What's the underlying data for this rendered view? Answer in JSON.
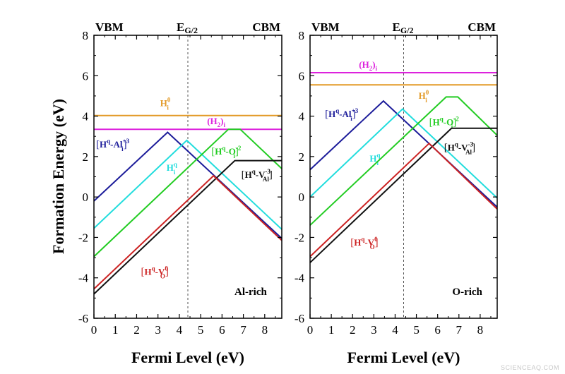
{
  "chart_data": {
    "type": "line",
    "y_axis_title": "Formation Energy (eV)",
    "x_axis_title": "Fermi Level (eV)",
    "xlim": [
      0,
      8.8
    ],
    "ylim": [
      -6,
      8
    ],
    "x_ticks": [
      "0",
      "1",
      "2",
      "3",
      "4",
      "5",
      "6",
      "7",
      "8"
    ],
    "y_ticks": [
      "-6",
      "-4",
      "-2",
      "0",
      "2",
      "4",
      "6",
      "8"
    ],
    "corner_labels": {
      "left": "VBM",
      "right": "CBM"
    },
    "midgap": {
      "label_main": "E",
      "label_sub": "G/2",
      "x": 4.4
    },
    "watermark": "SCIENCEAQ.COM",
    "panels": [
      {
        "name": "Al-rich",
        "series": [
          {
            "id": "Hi0",
            "label_main": "H",
            "label_sup": "0",
            "label_sub": "i",
            "color": "#e39a27",
            "points": [
              [
                0,
                4.03
              ],
              [
                8.8,
                4.03
              ]
            ],
            "label_pos": [
              3.1,
              4.5
            ]
          },
          {
            "id": "H2i",
            "label_main": "(H",
            "label_sub": "2",
            "label_tail": ")",
            "label_sub2": "i",
            "color": "#dd22dd",
            "points": [
              [
                0,
                3.35
              ],
              [
                8.8,
                3.35
              ]
            ],
            "label_pos": [
              5.3,
              3.6
            ]
          },
          {
            "id": "HqAl",
            "bracket": true,
            "label_main": "H",
            "label_sup": "q",
            "label_dash": "-Al",
            "label_sup2": "+3",
            "label_sub2": "i",
            "color": "#1c1c9a",
            "points": [
              [
                0,
                -0.2
              ],
              [
                3.45,
                3.2
              ],
              [
                8.8,
                -2.05
              ]
            ],
            "label_pos": [
              0.1,
              2.45
            ]
          },
          {
            "id": "Hiq",
            "label_main": "H",
            "label_sup": "q",
            "label_sub": "i",
            "color": "#22dddd",
            "points": [
              [
                0,
                -1.55
              ],
              [
                4.35,
                2.8
              ],
              [
                8.8,
                -1.6
              ]
            ],
            "label_pos": [
              3.4,
              1.3
            ]
          },
          {
            "id": "HqOi",
            "bracket": true,
            "label_main": "H",
            "label_sup": "q",
            "label_dash": "-O",
            "label_sup2": "-2",
            "label_sub2": "i",
            "color": "#22cc22",
            "points": [
              [
                0,
                -2.95
              ],
              [
                6.3,
                3.35
              ],
              [
                6.85,
                3.35
              ],
              [
                8.8,
                1.4
              ]
            ],
            "label_pos": [
              5.5,
              2.1
            ]
          },
          {
            "id": "HqVAl",
            "bracket": true,
            "label_main": "H",
            "label_sup": "q",
            "label_dash": "-V",
            "label_sup2": "-3",
            "label_sub2": "Al",
            "color": "#111111",
            "points": [
              [
                0,
                -4.8
              ],
              [
                6.6,
                1.8
              ],
              [
                8.8,
                1.8
              ]
            ],
            "label_pos": [
              6.9,
              0.95
            ]
          },
          {
            "id": "HqVO",
            "bracket": true,
            "label_main": "H",
            "label_sup": "q",
            "label_dash": "-V",
            "label_sup2": "0",
            "label_sub2": "O",
            "color": "#cc2222",
            "points": [
              [
                0,
                -4.55
              ],
              [
                5.6,
                1.05
              ],
              [
                8.8,
                -2.15
              ]
            ],
            "label_pos": [
              2.2,
              -3.85
            ]
          }
        ]
      },
      {
        "name": "O-rich",
        "series": [
          {
            "id": "H2i",
            "label_main": "(H",
            "label_sub": "2",
            "label_tail": ")",
            "label_sub2": "i",
            "color": "#dd22dd",
            "points": [
              [
                0,
                6.15
              ],
              [
                8.8,
                6.15
              ]
            ],
            "label_pos": [
              2.3,
              6.4
            ]
          },
          {
            "id": "Hi0",
            "label_main": "H",
            "label_sup": "0",
            "label_sub": "i",
            "color": "#e39a27",
            "points": [
              [
                0,
                5.55
              ],
              [
                8.8,
                5.55
              ]
            ],
            "label_pos": [
              5.1,
              4.85
            ]
          },
          {
            "id": "HqAl",
            "bracket": true,
            "label_main": "H",
            "label_sup": "q",
            "label_dash": "-Al",
            "label_sup2": "+3",
            "label_sub2": "i",
            "color": "#1c1c9a",
            "points": [
              [
                0,
                1.35
              ],
              [
                3.45,
                4.75
              ],
              [
                8.8,
                -0.5
              ]
            ],
            "label_pos": [
              0.7,
              3.95
            ]
          },
          {
            "id": "Hiq",
            "label_main": "H",
            "label_sup": "q",
            "label_sub": "i",
            "color": "#22dddd",
            "points": [
              [
                0,
                0
              ],
              [
                4.35,
                4.35
              ],
              [
                8.8,
                -0.05
              ]
            ],
            "label_pos": [
              2.8,
              1.75
            ]
          },
          {
            "id": "HqOi",
            "bracket": true,
            "label_main": "H",
            "label_sup": "q",
            "label_dash": "-O",
            "label_sup2": "-2",
            "label_sub2": "i",
            "color": "#22cc22",
            "points": [
              [
                0,
                -1.4
              ],
              [
                6.4,
                4.95
              ],
              [
                6.95,
                4.95
              ],
              [
                8.8,
                3.05
              ]
            ],
            "label_pos": [
              5.6,
              3.55
            ]
          },
          {
            "id": "HqVAl",
            "bracket": true,
            "label_main": "H",
            "label_sup": "q",
            "label_dash": "-V",
            "label_sup2": "-3",
            "label_sub2": "Al",
            "color": "#111111",
            "points": [
              [
                0,
                -3.25
              ],
              [
                6.65,
                3.4
              ],
              [
                8.8,
                3.4
              ]
            ],
            "label_pos": [
              6.3,
              2.3
            ]
          },
          {
            "id": "HqVO",
            "bracket": true,
            "label_main": "H",
            "label_sup": "q",
            "label_dash": "-V",
            "label_sup2": "0",
            "label_sub2": "O",
            "color": "#cc2222",
            "points": [
              [
                0,
                -2.95
              ],
              [
                5.6,
                2.65
              ],
              [
                8.8,
                -0.6
              ]
            ],
            "label_pos": [
              1.9,
              -2.4
            ]
          }
        ]
      }
    ]
  }
}
